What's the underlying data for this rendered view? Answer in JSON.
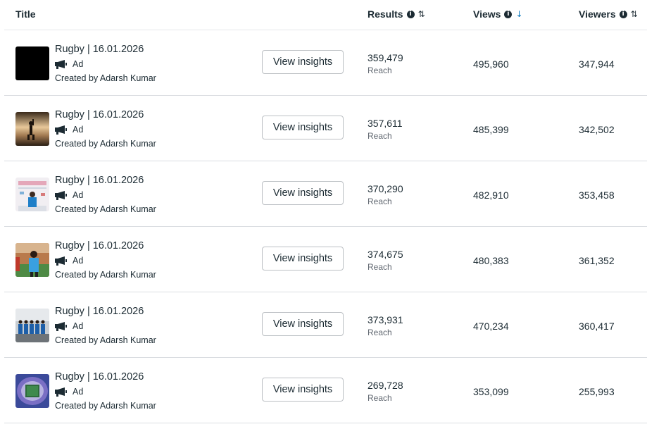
{
  "header": {
    "title": "Title",
    "results": "Results",
    "views": "Views",
    "viewers": "Viewers",
    "info_glyph": "i",
    "sort_glyph": "⇅",
    "sort_active_glyph": "↓"
  },
  "rows": [
    {
      "title": "Rugby | 16.01.2026",
      "ad_label": "Ad",
      "creator": "Created by Adarsh Kumar",
      "button": "View insights",
      "results": "359,479",
      "results_label": "Reach",
      "views": "495,960",
      "viewers": "347,944",
      "thumb": "black"
    },
    {
      "title": "Rugby | 16.01.2026",
      "ad_label": "Ad",
      "creator": "Created by Adarsh Kumar",
      "button": "View insights",
      "results": "357,611",
      "results_label": "Reach",
      "views": "485,399",
      "viewers": "342,502",
      "thumb": "sunset-silhouette"
    },
    {
      "title": "Rugby | 16.01.2026",
      "ad_label": "Ad",
      "creator": "Created by Adarsh Kumar",
      "button": "View insights",
      "results": "370,290",
      "results_label": "Reach",
      "views": "482,910",
      "viewers": "353,458",
      "thumb": "player-backdrop"
    },
    {
      "title": "Rugby | 16.01.2026",
      "ad_label": "Ad",
      "creator": "Created by Adarsh Kumar",
      "button": "View insights",
      "results": "374,675",
      "results_label": "Reach",
      "views": "480,383",
      "viewers": "361,352",
      "thumb": "player-stadium"
    },
    {
      "title": "Rugby | 16.01.2026",
      "ad_label": "Ad",
      "creator": "Created by Adarsh Kumar",
      "button": "View insights",
      "results": "373,931",
      "results_label": "Reach",
      "views": "470,234",
      "viewers": "360,417",
      "thumb": "team-group"
    },
    {
      "title": "Rugby | 16.01.2026",
      "ad_label": "Ad",
      "creator": "Created by Adarsh Kumar",
      "button": "View insights",
      "results": "269,728",
      "results_label": "Reach",
      "views": "353,099",
      "viewers": "255,993",
      "thumb": "stadium-aerial"
    }
  ],
  "colors": {
    "text": "#1c2b33",
    "muted": "#606770",
    "sort_active": "#0a78be",
    "divider": "#dadde1"
  },
  "icons": {
    "ad": "megaphone-icon",
    "info": "info-icon",
    "sort": "sort-icon",
    "sort_active": "sort-descending-icon"
  }
}
